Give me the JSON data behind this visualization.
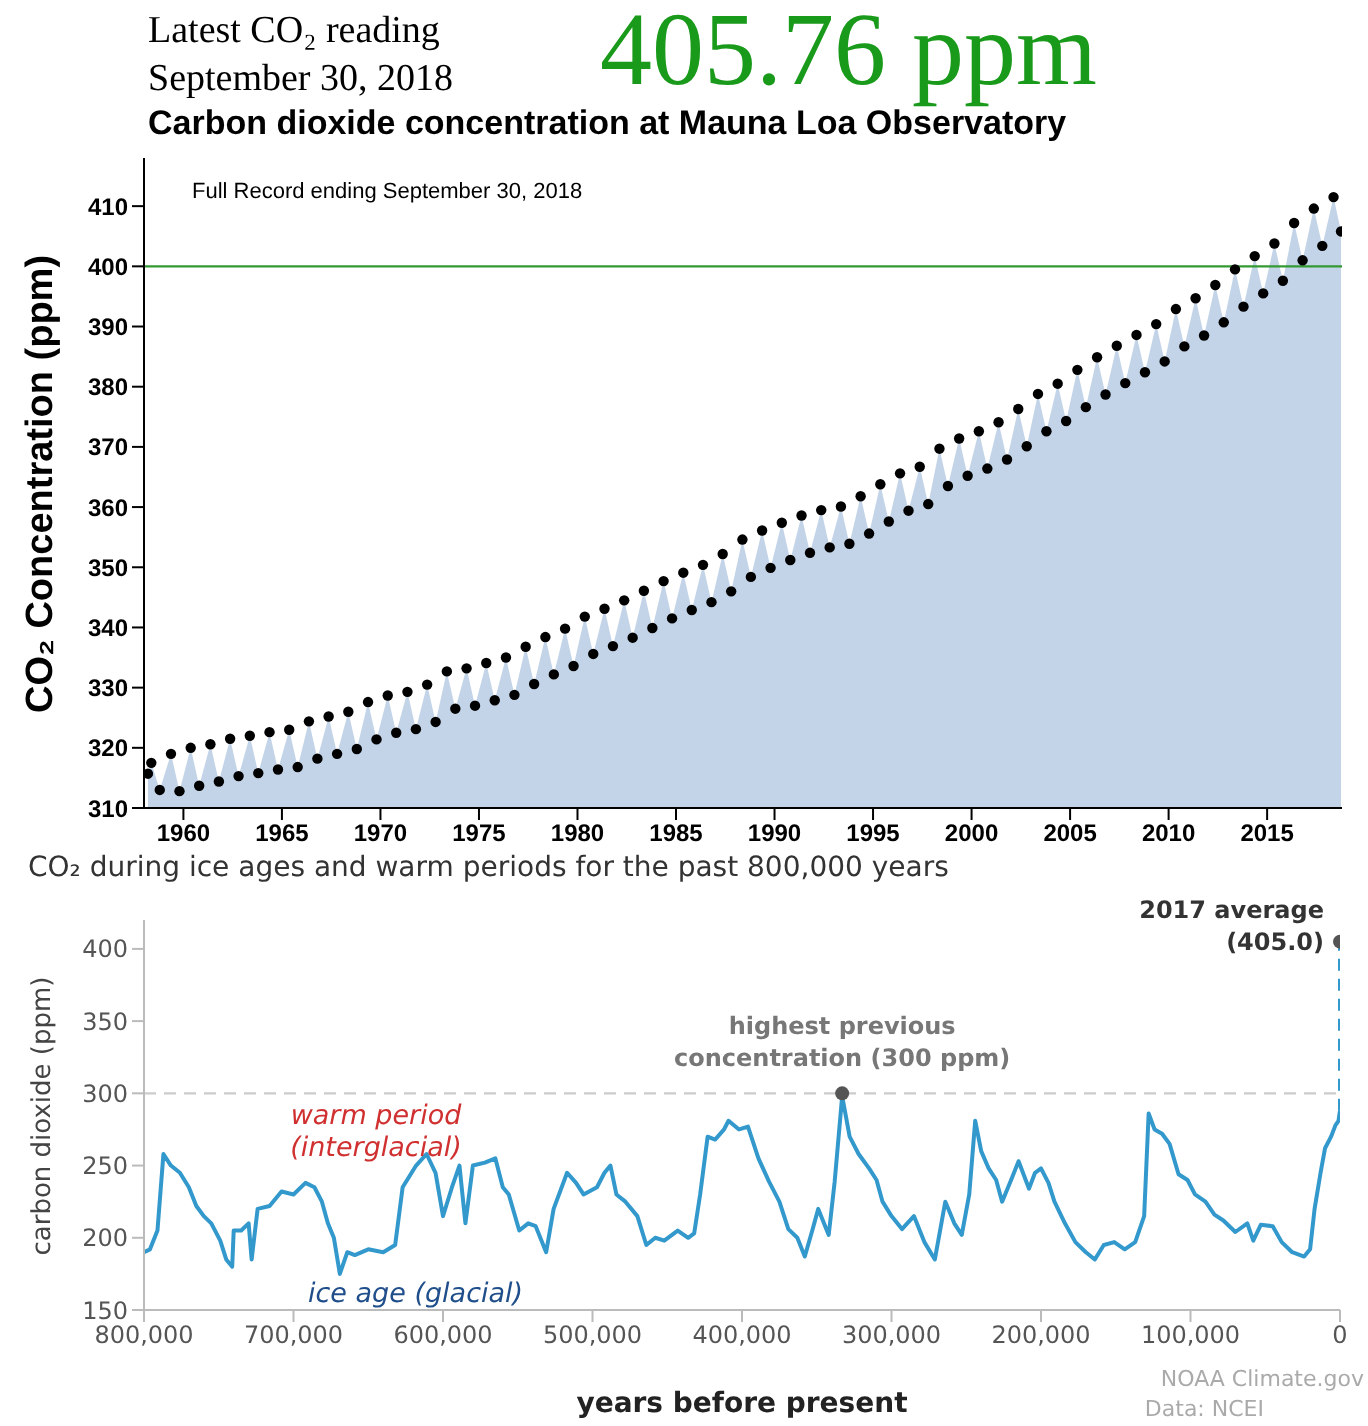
{
  "chart_data": [
    {
      "type": "area",
      "title": "Carbon dioxide concentration at Mauna Loa Observatory",
      "ylabel": "CO₂ Concentration (ppm)",
      "annotations": [
        "Latest CO₂ reading September 30, 2018",
        "405.76 ppm",
        "Full Record ending September 30, 2018"
      ],
      "x": [
        1958.2,
        1958.37,
        1958.8,
        1959.37,
        1959.8,
        1960.37,
        1960.8,
        1961.37,
        1961.8,
        1962.37,
        1962.8,
        1963.37,
        1963.8,
        1964.37,
        1964.8,
        1965.37,
        1965.8,
        1966.37,
        1966.8,
        1967.37,
        1967.8,
        1968.37,
        1968.8,
        1969.37,
        1969.8,
        1970.37,
        1970.8,
        1971.37,
        1971.8,
        1972.37,
        1972.8,
        1973.37,
        1973.8,
        1974.37,
        1974.8,
        1975.37,
        1975.8,
        1976.37,
        1976.8,
        1977.37,
        1977.8,
        1978.37,
        1978.8,
        1979.37,
        1979.8,
        1980.37,
        1980.8,
        1981.37,
        1981.8,
        1982.37,
        1982.8,
        1983.37,
        1983.8,
        1984.37,
        1984.8,
        1985.37,
        1985.8,
        1986.37,
        1986.8,
        1987.37,
        1987.8,
        1988.37,
        1988.8,
        1989.37,
        1989.8,
        1990.37,
        1990.8,
        1991.37,
        1991.8,
        1992.37,
        1992.8,
        1993.37,
        1993.8,
        1994.37,
        1994.8,
        1995.37,
        1995.8,
        1996.37,
        1996.8,
        1997.37,
        1997.8,
        1998.37,
        1998.8,
        1999.37,
        1999.8,
        2000.37,
        2000.8,
        2001.37,
        2001.8,
        2002.37,
        2002.8,
        2003.37,
        2003.8,
        2004.37,
        2004.8,
        2005.37,
        2005.8,
        2006.37,
        2006.8,
        2007.37,
        2007.8,
        2008.37,
        2008.8,
        2009.37,
        2009.8,
        2010.37,
        2010.8,
        2011.37,
        2011.8,
        2012.37,
        2012.8,
        2013.37,
        2013.8,
        2014.37,
        2014.8,
        2015.37,
        2015.8,
        2016.37,
        2016.8,
        2017.37,
        2017.8,
        2018.37,
        2018.75
      ],
      "series": [
        {
          "color": "#c3d4e8",
          "values": [
            315.7,
            317.5,
            313.0,
            319.0,
            312.8,
            320.0,
            313.7,
            320.6,
            314.4,
            321.5,
            315.3,
            322.0,
            315.8,
            322.6,
            316.4,
            323.0,
            316.8,
            324.4,
            318.2,
            325.2,
            319.0,
            326.0,
            319.8,
            327.6,
            321.4,
            328.7,
            322.5,
            329.3,
            323.1,
            330.5,
            324.3,
            332.7,
            326.5,
            333.2,
            327.0,
            334.1,
            327.9,
            335.0,
            328.8,
            336.8,
            330.6,
            338.4,
            332.2,
            339.8,
            333.6,
            341.8,
            335.6,
            343.1,
            336.9,
            344.5,
            338.3,
            346.1,
            339.9,
            347.7,
            341.5,
            349.1,
            342.9,
            350.4,
            344.2,
            352.2,
            346.0,
            354.6,
            348.4,
            356.1,
            349.9,
            357.4,
            351.2,
            358.6,
            352.4,
            359.5,
            353.3,
            360.1,
            353.9,
            361.8,
            355.6,
            363.8,
            357.6,
            365.6,
            359.4,
            366.7,
            360.5,
            369.7,
            363.5,
            371.4,
            365.2,
            372.6,
            366.4,
            374.1,
            367.9,
            376.3,
            370.1,
            378.8,
            372.6,
            380.5,
            374.3,
            382.8,
            376.6,
            384.9,
            378.7,
            386.8,
            380.6,
            388.6,
            382.4,
            390.4,
            384.2,
            392.9,
            386.7,
            394.7,
            388.5,
            396.9,
            390.7,
            399.5,
            393.3,
            401.7,
            395.5,
            403.8,
            397.6,
            407.2,
            401.0,
            409.6,
            403.4,
            411.5,
            405.8
          ]
        },
        {
          "type": "scatter",
          "color": "#000000",
          "marker": "circle",
          "values": [
            315.7,
            317.5,
            313.0,
            319.0,
            312.8,
            320.0,
            313.7,
            320.6,
            314.4,
            321.5,
            315.3,
            322.0,
            315.8,
            322.6,
            316.4,
            323.0,
            316.8,
            324.4,
            318.2,
            325.2,
            319.0,
            326.0,
            319.8,
            327.6,
            321.4,
            328.7,
            322.5,
            329.3,
            323.1,
            330.5,
            324.3,
            332.7,
            326.5,
            333.2,
            327.0,
            334.1,
            327.9,
            335.0,
            328.8,
            336.8,
            330.6,
            338.4,
            332.2,
            339.8,
            333.6,
            341.8,
            335.6,
            343.1,
            336.9,
            344.5,
            338.3,
            346.1,
            339.9,
            347.7,
            341.5,
            349.1,
            342.9,
            350.4,
            344.2,
            352.2,
            346.0,
            354.6,
            348.4,
            356.1,
            349.9,
            357.4,
            351.2,
            358.6,
            352.4,
            359.5,
            353.3,
            360.1,
            353.9,
            361.8,
            355.6,
            363.8,
            357.6,
            365.6,
            359.4,
            366.7,
            360.5,
            369.7,
            363.5,
            371.4,
            365.2,
            372.6,
            366.4,
            374.1,
            367.9,
            376.3,
            370.1,
            378.8,
            372.6,
            380.5,
            374.3,
            382.8,
            376.6,
            384.9,
            378.7,
            386.8,
            380.6,
            388.6,
            382.4,
            390.4,
            384.2,
            392.9,
            386.7,
            394.7,
            388.5,
            396.9,
            390.7,
            399.5,
            393.3,
            401.7,
            395.5,
            403.8,
            397.6,
            407.2,
            401.0,
            409.6,
            403.4,
            411.5,
            405.8
          ]
        }
      ],
      "xlim": [
        1958,
        2018.8
      ],
      "xticks": [
        1960,
        1965,
        1970,
        1975,
        1980,
        1985,
        1990,
        1995,
        2000,
        2005,
        2010,
        2015
      ],
      "ylim": [
        310,
        418
      ],
      "yticks": [
        310,
        320,
        330,
        340,
        350,
        360,
        370,
        380,
        390,
        400,
        410
      ],
      "ref_lines": [
        {
          "axis": "y",
          "value": 400,
          "color": "#339933",
          "line_style": "solid"
        }
      ]
    },
    {
      "type": "line",
      "title": "CO₂ during ice ages and warm periods for the past 800,000 years",
      "xlabel": "years before present",
      "ylabel": "carbon dioxide (ppm)",
      "annotations": [
        {
          "text": "highest previous concentration (300 ppm)",
          "x": 333000,
          "y": 300
        },
        {
          "text": "2017 average (405.0)",
          "x": 0,
          "y": 405
        },
        "warm period (interglacial)",
        "ice age (glacial)",
        "NOAA Climate.gov",
        "Data: NCEI"
      ],
      "series": [
        {
          "color": "#3399cc",
          "line_style": "solid",
          "x": [
            800000,
            796000,
            791000,
            787000,
            782000,
            776000,
            770000,
            765000,
            760000,
            755000,
            749000,
            745000,
            741000,
            740000,
            735000,
            730000,
            728000,
            724000,
            716000,
            708000,
            700000,
            692000,
            686000,
            681000,
            677000,
            673000,
            669000,
            664000,
            659000,
            650000,
            640000,
            632000,
            627000,
            618000,
            611000,
            605000,
            600000,
            594000,
            589000,
            585000,
            580000,
            572000,
            565000,
            560000,
            556000,
            549000,
            543000,
            538000,
            531000,
            526000,
            517000,
            511000,
            506000,
            497000,
            492000,
            488000,
            484000,
            478000,
            470000,
            464000,
            458000,
            452000,
            443000,
            436000,
            432000,
            428000,
            423000,
            418000,
            412000,
            409000,
            402000,
            396000,
            389000,
            382000,
            375000,
            369000,
            363000,
            358000,
            353000,
            349000,
            342000,
            338000,
            333000,
            328000,
            322000,
            315000,
            310000,
            306000,
            300000,
            293000,
            285000,
            278000,
            271000,
            264000,
            258000,
            253000,
            248000,
            244000,
            240000,
            235000,
            230000,
            226000,
            220000,
            215000,
            208000,
            204000,
            200000,
            195000,
            191000,
            184000,
            177000,
            170000,
            164000,
            158000,
            151000,
            144000,
            137000,
            131000,
            128000,
            124000,
            119000,
            114000,
            108000,
            102000,
            97000,
            90000,
            84000,
            78000,
            70000,
            62000,
            58000,
            53000,
            45000,
            39000,
            32000,
            24000,
            20000,
            17000,
            13000,
            10000,
            6000,
            3000,
            1000,
            0
          ],
          "values": [
            190,
            192,
            205,
            258,
            250,
            245,
            235,
            222,
            215,
            210,
            198,
            185,
            180,
            205,
            205,
            210,
            185,
            220,
            222,
            232,
            230,
            238,
            235,
            225,
            210,
            200,
            175,
            190,
            188,
            192,
            190,
            195,
            235,
            250,
            258,
            245,
            215,
            235,
            250,
            210,
            250,
            252,
            255,
            235,
            230,
            205,
            210,
            208,
            190,
            220,
            245,
            238,
            230,
            235,
            245,
            250,
            230,
            225,
            215,
            195,
            200,
            198,
            205,
            200,
            203,
            230,
            270,
            268,
            275,
            281,
            275,
            277,
            255,
            239,
            225,
            206,
            200,
            187,
            205,
            220,
            202,
            239,
            298,
            270,
            258,
            248,
            240,
            225,
            215,
            206,
            215,
            197,
            185,
            225,
            210,
            202,
            230,
            281,
            260,
            248,
            240,
            225,
            240,
            253,
            234,
            245,
            248,
            238,
            225,
            210,
            197,
            190,
            185,
            195,
            197,
            192,
            197,
            215,
            286,
            275,
            272,
            265,
            244,
            240,
            230,
            225,
            216,
            212,
            204,
            210,
            198,
            209,
            208,
            197,
            190,
            187,
            192,
            220,
            245,
            262,
            270,
            278,
            281,
            288
          ]
        },
        {
          "type": "line",
          "color": "#3399cc",
          "line_style": "dashed",
          "x": [
            0,
            0
          ],
          "values": [
            288,
            405
          ]
        },
        {
          "type": "scatter",
          "color": "#555555",
          "marker": "circle",
          "x": [
            333000,
            0
          ],
          "values": [
            300,
            405
          ]
        }
      ],
      "xlim": [
        800000,
        0
      ],
      "xticks": [
        {
          "value": 800000,
          "label": "800,000"
        },
        {
          "value": 700000,
          "label": "700,000"
        },
        {
          "value": 600000,
          "label": "600,000"
        },
        {
          "value": 500000,
          "label": "500,000"
        },
        {
          "value": 400000,
          "label": "400,000"
        },
        {
          "value": 300000,
          "label": "300,000"
        },
        {
          "value": 200000,
          "label": "200,000"
        },
        {
          "value": 100000,
          "label": "100,000"
        },
        0
      ],
      "ylim": [
        150,
        420
      ],
      "yticks": [
        150,
        200,
        250,
        300,
        350,
        400
      ],
      "ref_lines": [
        {
          "axis": "y",
          "value": 300,
          "color": "#cccccc",
          "line_style": "dashed"
        }
      ]
    }
  ]
}
